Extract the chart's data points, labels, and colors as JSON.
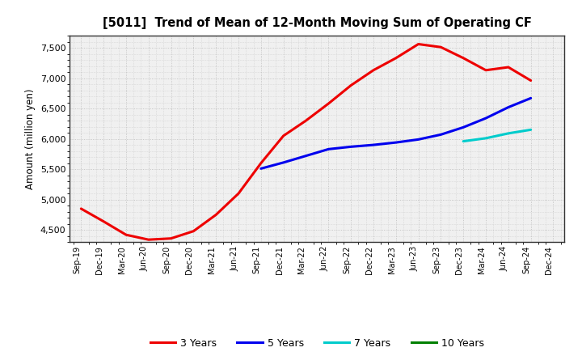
{
  "title": "[5011]  Trend of Mean of 12-Month Moving Sum of Operating CF",
  "ylabel": "Amount (million yen)",
  "ylim": [
    4300,
    7700
  ],
  "yticks": [
    4500,
    5000,
    5500,
    6000,
    6500,
    7000,
    7500
  ],
  "background_color": "#ffffff",
  "plot_bg_color": "#f0f0f0",
  "grid_color": "#bbbbbb",
  "x_labels": [
    "Sep-19",
    "Dec-19",
    "Mar-20",
    "Jun-20",
    "Sep-20",
    "Dec-20",
    "Mar-21",
    "Jun-21",
    "Sep-21",
    "Dec-21",
    "Mar-22",
    "Jun-22",
    "Sep-22",
    "Dec-22",
    "Mar-23",
    "Jun-23",
    "Sep-23",
    "Dec-23",
    "Mar-24",
    "Jun-24",
    "Sep-24",
    "Dec-24"
  ],
  "series": {
    "3 Years": {
      "color": "#ee0000",
      "linewidth": 2.2,
      "values": [
        4850,
        4640,
        4420,
        4340,
        4360,
        4480,
        4750,
        5100,
        5600,
        6050,
        6300,
        6580,
        6880,
        7130,
        7330,
        7560,
        7510,
        7330,
        7130,
        7180,
        6960,
        null
      ]
    },
    "5 Years": {
      "color": "#0000ee",
      "linewidth": 2.2,
      "values": [
        null,
        null,
        null,
        null,
        null,
        null,
        null,
        null,
        5510,
        5610,
        5720,
        5830,
        5870,
        5900,
        5940,
        5990,
        6070,
        6190,
        6340,
        6520,
        6670,
        null
      ]
    },
    "7 Years": {
      "color": "#00cccc",
      "linewidth": 2.2,
      "values": [
        null,
        null,
        null,
        null,
        null,
        null,
        null,
        null,
        null,
        null,
        null,
        null,
        null,
        null,
        null,
        null,
        null,
        5960,
        6010,
        6090,
        6150,
        null
      ]
    },
    "10 Years": {
      "color": "#008000",
      "linewidth": 2.2,
      "values": [
        null,
        null,
        null,
        null,
        null,
        null,
        null,
        null,
        null,
        null,
        null,
        null,
        null,
        null,
        null,
        null,
        null,
        null,
        null,
        null,
        null,
        null
      ]
    }
  },
  "legend_labels": [
    "3 Years",
    "5 Years",
    "7 Years",
    "10 Years"
  ],
  "legend_colors": [
    "#ee0000",
    "#0000ee",
    "#00cccc",
    "#008000"
  ]
}
